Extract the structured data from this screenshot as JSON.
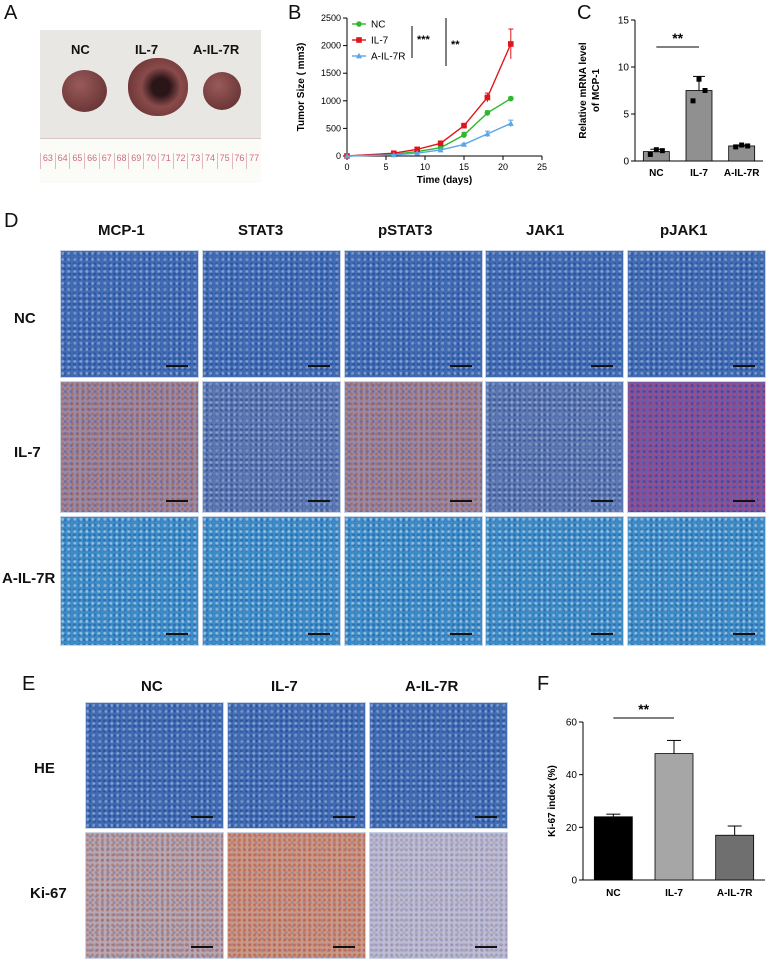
{
  "panels": {
    "A": {
      "letter": "A",
      "groups": [
        "NC",
        "IL-7",
        "A-IL-7R"
      ],
      "ruler_numbers": [
        "63",
        "64",
        "65",
        "66",
        "67",
        "68",
        "69",
        "70",
        "71",
        "72",
        "73",
        "74",
        "75",
        "76",
        "77"
      ]
    },
    "B": {
      "letter": "B",
      "stars_top": "***",
      "stars_right": "**"
    },
    "C": {
      "letter": "C",
      "stars": "**"
    },
    "D": {
      "letter": "D",
      "columns": [
        "MCP-1",
        "STAT3",
        "pSTAT3",
        "JAK1",
        "pJAK1"
      ],
      "rows": [
        "NC",
        "IL-7",
        "A-IL-7R"
      ]
    },
    "E": {
      "letter": "E",
      "columns": [
        "NC",
        "IL-7",
        "A-IL-7R"
      ],
      "rows": [
        "HE",
        "Ki-67"
      ]
    },
    "F": {
      "letter": "F",
      "stars": "**"
    }
  },
  "chart_data": [
    {
      "panel": "B",
      "type": "line",
      "xlabel": "Time (days)",
      "ylabel": "Tumor Size ( mm3)",
      "xlim": [
        0,
        25
      ],
      "ylim": [
        0,
        2500
      ],
      "xticks": [
        0,
        5,
        10,
        15,
        20,
        25
      ],
      "yticks": [
        0,
        500,
        1000,
        1500,
        2000,
        2500
      ],
      "legend": "top-left",
      "x": [
        0,
        6,
        9,
        12,
        15,
        18,
        21
      ],
      "series": [
        {
          "name": "NC",
          "color": "#2db82d",
          "marker": "circle",
          "values": [
            0,
            30,
            80,
            150,
            380,
            780,
            1040
          ],
          "errors": [
            0,
            10,
            15,
            20,
            50,
            40,
            30
          ]
        },
        {
          "name": "IL-7",
          "color": "#e0151c",
          "marker": "square",
          "values": [
            0,
            50,
            120,
            230,
            550,
            1060,
            2030
          ],
          "errors": [
            0,
            10,
            20,
            25,
            40,
            80,
            270
          ]
        },
        {
          "name": "A-IL-7R",
          "color": "#5aa6e6",
          "marker": "triangle",
          "values": [
            0,
            20,
            50,
            110,
            210,
            400,
            590
          ],
          "errors": [
            0,
            8,
            12,
            15,
            20,
            50,
            60
          ]
        }
      ]
    },
    {
      "panel": "C",
      "type": "bar",
      "ylabel": "Relative mRNA level of MCP-1",
      "categories": [
        "NC",
        "IL-7",
        "A-IL-7R"
      ],
      "values": [
        1.0,
        7.5,
        1.6
      ],
      "errors": [
        0.25,
        1.5,
        0.1
      ],
      "points": [
        [
          0.7,
          1.2,
          1.1
        ],
        [
          6.4,
          8.7,
          7.5
        ],
        [
          1.5,
          1.7,
          1.6
        ]
      ],
      "ylim": [
        0,
        15
      ],
      "yticks": [
        0,
        5,
        10,
        15
      ],
      "color": "#909090"
    },
    {
      "panel": "F",
      "type": "bar",
      "ylabel": "Ki-67 index (%)",
      "categories": [
        "NC",
        "IL-7",
        "A-IL-7R"
      ],
      "values": [
        24,
        48,
        17
      ],
      "errors": [
        1,
        5,
        3.5
      ],
      "ylim": [
        0,
        60
      ],
      "yticks": [
        0,
        20,
        40,
        60
      ],
      "colors": [
        "#000000",
        "#a6a6a6",
        "#6f6f6f"
      ]
    }
  ]
}
